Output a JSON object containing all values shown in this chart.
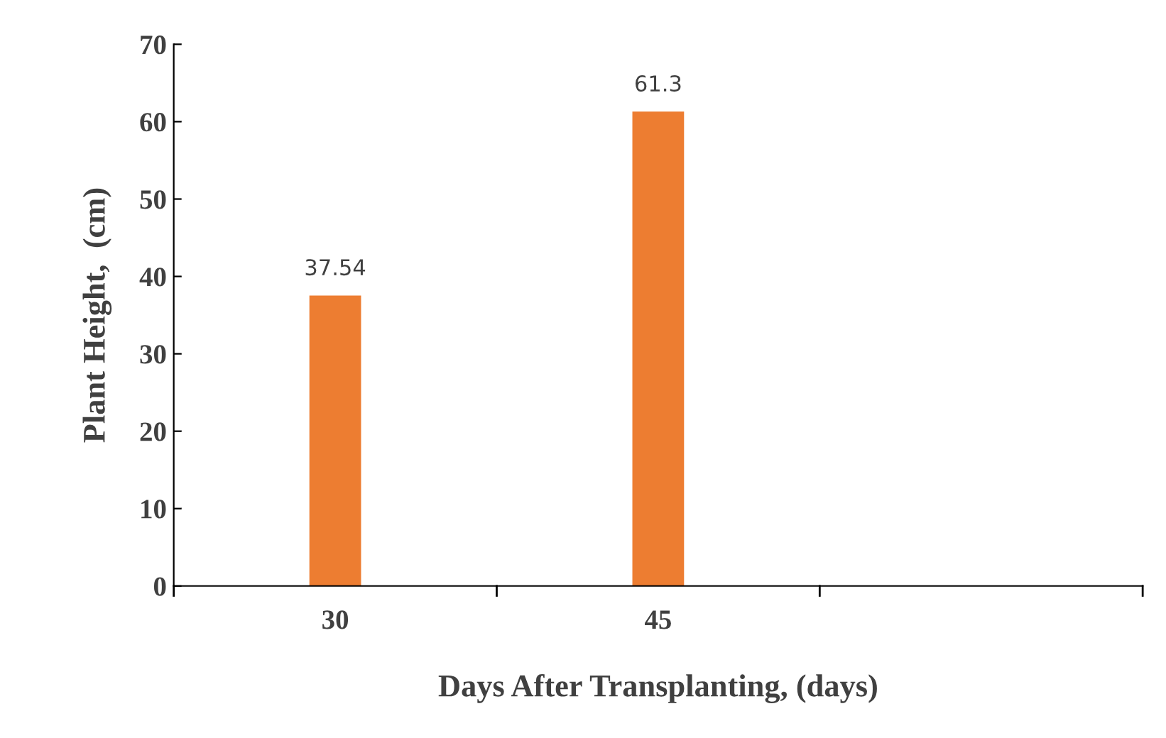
{
  "chart_data": {
    "type": "bar",
    "xlabel": "Days After Transplanting, (days)",
    "ylabel": "Plant Height,  (cm)",
    "categories": [
      "30",
      "45",
      null
    ],
    "values": [
      37.54,
      61.3,
      null
    ],
    "color": "#ed7d31",
    "ylim": [
      0,
      70
    ],
    "yticks": [
      0,
      10,
      20,
      30,
      40,
      50,
      60,
      70
    ],
    "grid": false,
    "data_labels": true
  }
}
